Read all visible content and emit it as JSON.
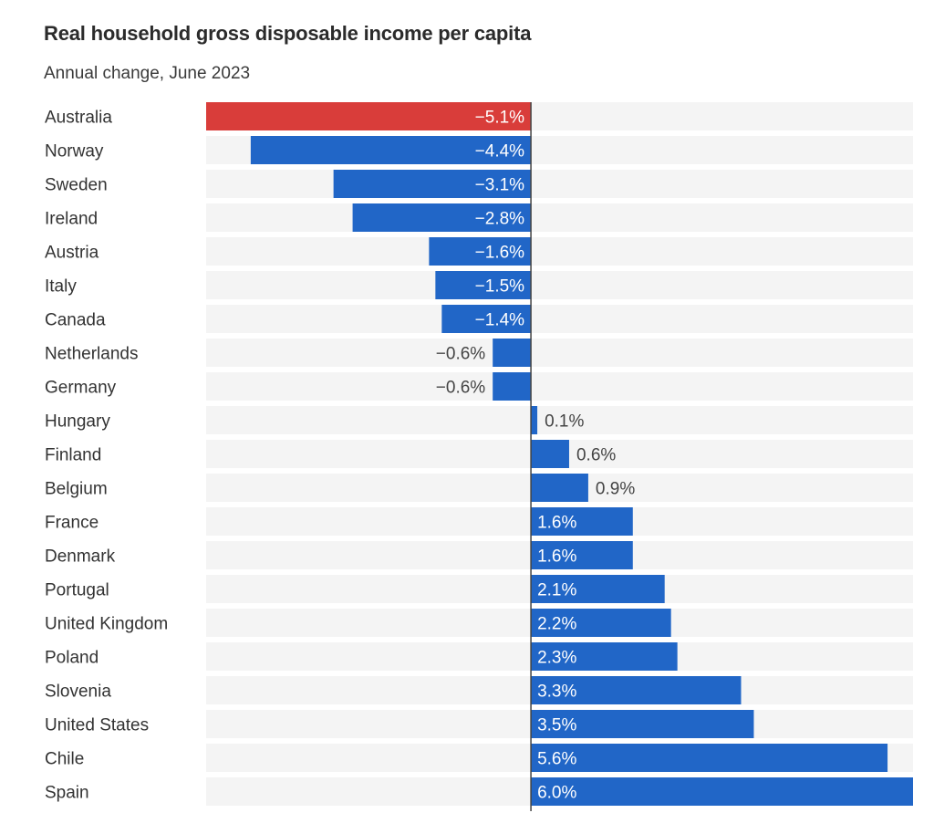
{
  "chart_data": {
    "type": "bar",
    "orientation": "horizontal",
    "title": "Real household gross disposable income per capita",
    "subtitle": "Annual change, June 2023",
    "xlabel": "",
    "ylabel": "",
    "xlim": [
      -5.1,
      6.0
    ],
    "grid": false,
    "unit": "%",
    "categories": [
      "Australia",
      "Norway",
      "Sweden",
      "Ireland",
      "Austria",
      "Italy",
      "Canada",
      "Netherlands",
      "Germany",
      "Hungary",
      "Finland",
      "Belgium",
      "France",
      "Denmark",
      "Portugal",
      "United Kingdom",
      "Poland",
      "Slovenia",
      "United States",
      "Chile",
      "Spain"
    ],
    "values": [
      -5.1,
      -4.4,
      -3.1,
      -2.8,
      -1.6,
      -1.5,
      -1.4,
      -0.6,
      -0.6,
      0.1,
      0.6,
      0.9,
      1.6,
      1.6,
      2.1,
      2.2,
      2.3,
      3.3,
      3.5,
      5.6,
      6.0
    ],
    "labels": [
      "−5.1%",
      "−4.4%",
      "−3.1%",
      "−2.8%",
      "−1.6%",
      "−1.5%",
      "−1.4%",
      "−0.6%",
      "−0.6%",
      "0.1%",
      "0.6%",
      "0.9%",
      "1.6%",
      "1.6%",
      "2.1%",
      "2.2%",
      "2.3%",
      "3.3%",
      "3.5%",
      "5.6%",
      "6.0%"
    ],
    "highlight": "Australia",
    "colors": {
      "bar": "#2166c7",
      "highlight": "#d93d3a",
      "row_background": "#f4f4f4",
      "axis": "#444444"
    }
  }
}
